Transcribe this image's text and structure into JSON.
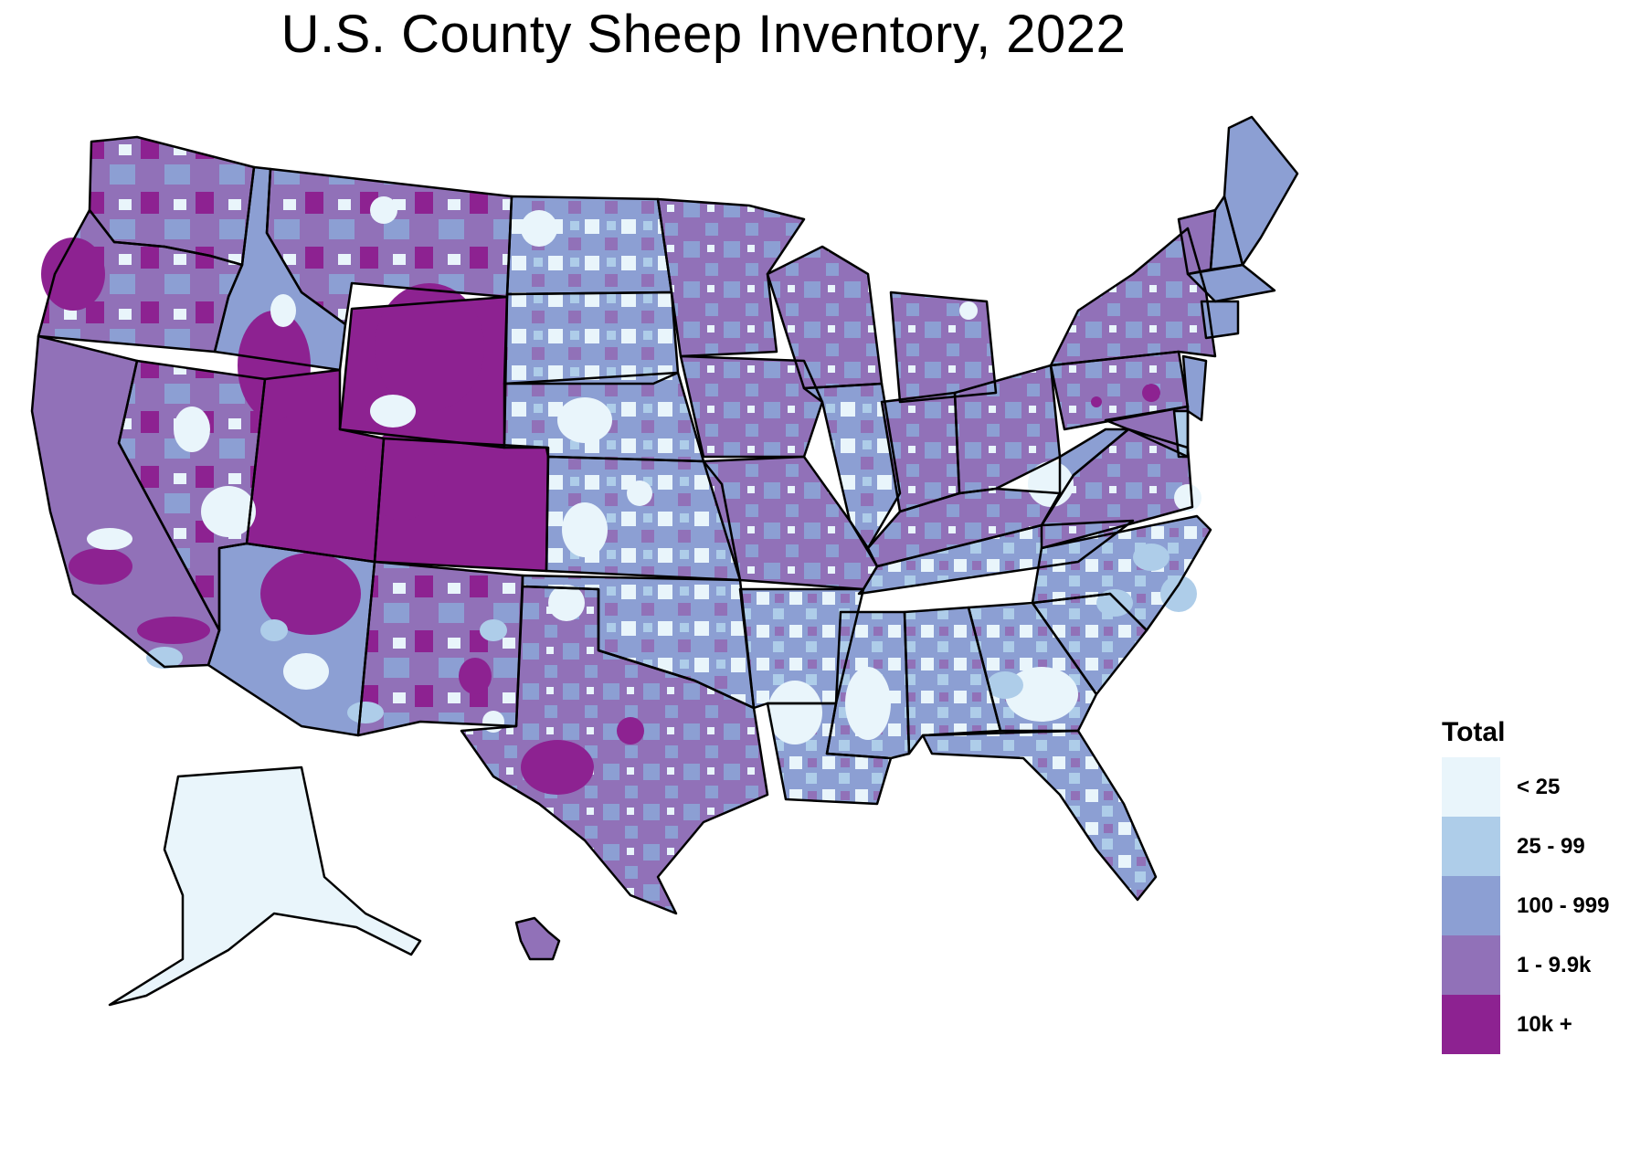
{
  "title": "U.S. County Sheep Inventory, 2022",
  "legend": {
    "title": "Total",
    "classes": [
      {
        "label": "< 25",
        "color": "#e9f5fb"
      },
      {
        "label": "25 - 99",
        "color": "#aecde9"
      },
      {
        "label": "100 - 999",
        "color": "#8c9fd3"
      },
      {
        "label": "1 - 9.9k",
        "color": "#9171b8"
      },
      {
        "label": "10k +",
        "color": "#8d2291"
      }
    ]
  },
  "map": {
    "border_color": "#000000",
    "states": [
      {
        "name": "WA",
        "class": 3
      },
      {
        "name": "OR",
        "class": 3
      },
      {
        "name": "CA",
        "class": 3
      },
      {
        "name": "ID",
        "class": 2
      },
      {
        "name": "NV",
        "class": 2
      },
      {
        "name": "MT",
        "class": 3
      },
      {
        "name": "WY",
        "class": 4
      },
      {
        "name": "UT",
        "class": 4
      },
      {
        "name": "CO",
        "class": 4
      },
      {
        "name": "AZ",
        "class": 2
      },
      {
        "name": "NM",
        "class": 3
      },
      {
        "name": "ND",
        "class": 2
      },
      {
        "name": "SD",
        "class": 3
      },
      {
        "name": "NE",
        "class": 1
      },
      {
        "name": "KS",
        "class": 2
      },
      {
        "name": "OK",
        "class": 2
      },
      {
        "name": "TX",
        "class": 3
      },
      {
        "name": "MN",
        "class": 2
      },
      {
        "name": "IA",
        "class": 3
      },
      {
        "name": "MO",
        "class": 3
      },
      {
        "name": "AR",
        "class": 1
      },
      {
        "name": "LA",
        "class": 1
      },
      {
        "name": "WI",
        "class": 2
      },
      {
        "name": "IL",
        "class": 2
      },
      {
        "name": "MI",
        "class": 3
      },
      {
        "name": "IN",
        "class": 3
      },
      {
        "name": "OH",
        "class": 3
      },
      {
        "name": "KY",
        "class": 3
      },
      {
        "name": "TN",
        "class": 2
      },
      {
        "name": "MS",
        "class": 1
      },
      {
        "name": "AL",
        "class": 2
      },
      {
        "name": "GA",
        "class": 0
      },
      {
        "name": "FL",
        "class": 2
      },
      {
        "name": "SC",
        "class": 1
      },
      {
        "name": "NC",
        "class": 2
      },
      {
        "name": "VA",
        "class": 3
      },
      {
        "name": "WV",
        "class": 2
      },
      {
        "name": "PA",
        "class": 3
      },
      {
        "name": "NY",
        "class": 3
      },
      {
        "name": "VT",
        "class": 3
      },
      {
        "name": "NH",
        "class": 2
      },
      {
        "name": "ME",
        "class": 2
      },
      {
        "name": "MA",
        "class": 2
      },
      {
        "name": "CT",
        "class": 2
      },
      {
        "name": "NJ",
        "class": 2
      },
      {
        "name": "MD",
        "class": 3
      },
      {
        "name": "DE",
        "class": 1
      },
      {
        "name": "AK",
        "class": 0
      },
      {
        "name": "HI",
        "class": 3
      }
    ]
  }
}
